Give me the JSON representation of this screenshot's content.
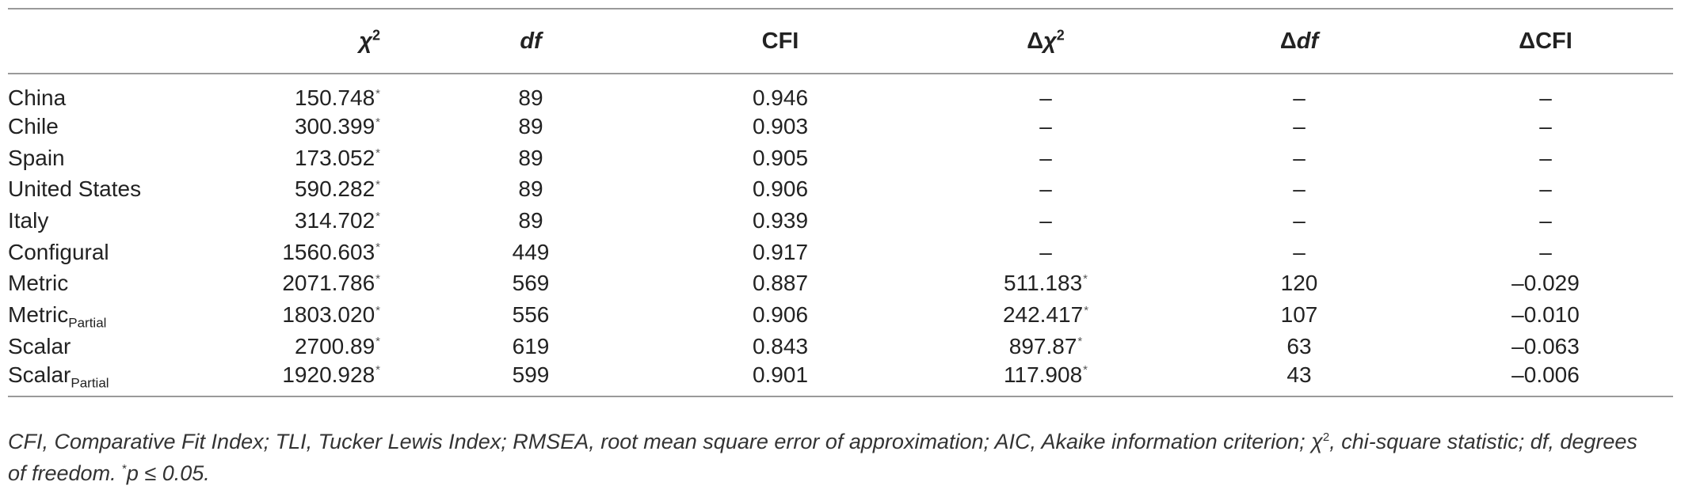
{
  "table": {
    "headers": {
      "chi2": "χ",
      "chi2_sup": "2",
      "df": "df",
      "cfi": "CFI",
      "dchi2_delta": "Δ",
      "dchi2_chi": "χ",
      "dchi2_sup": "2",
      "ddf_delta": "Δ",
      "ddf_df": "df",
      "dcfi": "ΔCFI"
    },
    "rows": [
      {
        "label": "China",
        "label_sub": "",
        "chi2": "150.748",
        "chi2_star": "*",
        "df": "89",
        "cfi": "0.946",
        "dchi2": "–",
        "dchi2_star": "",
        "ddf": "–",
        "dcfi": "–"
      },
      {
        "label": "Chile",
        "label_sub": "",
        "chi2": "300.399",
        "chi2_star": "*",
        "df": "89",
        "cfi": "0.903",
        "dchi2": "–",
        "dchi2_star": "",
        "ddf": "–",
        "dcfi": "–"
      },
      {
        "label": "Spain",
        "label_sub": "",
        "chi2": "173.052",
        "chi2_star": "*",
        "df": "89",
        "cfi": "0.905",
        "dchi2": "–",
        "dchi2_star": "",
        "ddf": "–",
        "dcfi": "–"
      },
      {
        "label": "United States",
        "label_sub": "",
        "chi2": "590.282",
        "chi2_star": "*",
        "df": "89",
        "cfi": "0.906",
        "dchi2": "–",
        "dchi2_star": "",
        "ddf": "–",
        "dcfi": "–"
      },
      {
        "label": "Italy",
        "label_sub": "",
        "chi2": "314.702",
        "chi2_star": "*",
        "df": "89",
        "cfi": "0.939",
        "dchi2": "–",
        "dchi2_star": "",
        "ddf": "–",
        "dcfi": "–"
      },
      {
        "label": "Configural",
        "label_sub": "",
        "chi2": "1560.603",
        "chi2_star": "*",
        "df": "449",
        "cfi": "0.917",
        "dchi2": "–",
        "dchi2_star": "",
        "ddf": "–",
        "dcfi": "–"
      },
      {
        "label": "Metric",
        "label_sub": "",
        "chi2": "2071.786",
        "chi2_star": "*",
        "df": "569",
        "cfi": "0.887",
        "dchi2": "511.183",
        "dchi2_star": "*",
        "ddf": "120",
        "dcfi": "–0.029"
      },
      {
        "label": "Metric",
        "label_sub": "Partial",
        "chi2": "1803.020",
        "chi2_star": "*",
        "df": "556",
        "cfi": "0.906",
        "dchi2": "242.417",
        "dchi2_star": "*",
        "ddf": "107",
        "dcfi": "–0.010"
      },
      {
        "label": "Scalar",
        "label_sub": "",
        "chi2": "2700.89",
        "chi2_star": "*",
        "df": "619",
        "cfi": "0.843",
        "dchi2": "897.87",
        "dchi2_star": "*",
        "ddf": "63",
        "dcfi": "–0.063"
      },
      {
        "label": "Scalar",
        "label_sub": "Partial",
        "chi2": "1920.928",
        "chi2_star": "*",
        "df": "599",
        "cfi": "0.901",
        "dchi2": "117.908",
        "dchi2_star": "*",
        "ddf": "43",
        "dcfi": "–0.006"
      }
    ]
  },
  "note": {
    "part1": "CFI, Comparative Fit Index; TLI, Tucker Lewis Index; RMSEA, root mean square error of approximation; AIC, Akaike information criterion; χ",
    "part1_sup": "2",
    "part2": ", chi-square statistic; df, degrees of freedom. ",
    "star": "*",
    "part3": "p ≤ 0.05."
  }
}
